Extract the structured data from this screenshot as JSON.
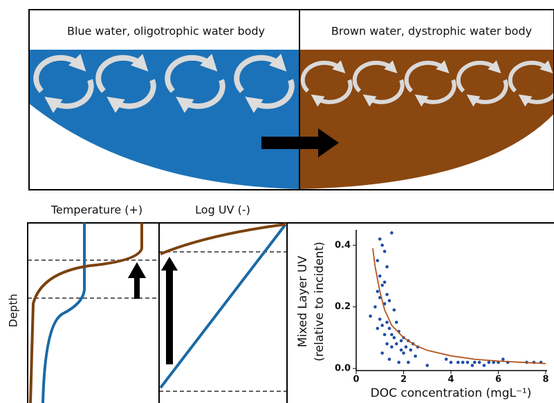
{
  "top_panel": {
    "left_label": "Blue water, oligotrophic water body",
    "right_label": "Brown water, dystrophic water body"
  },
  "profiles": {
    "temperature_label": "Temperature (+)",
    "uv_label": "Log UV (-)",
    "depth_label": "Depth"
  },
  "chart_data": {
    "type": "scatter",
    "ylabel": [
      "Mixed Layer UV",
      "(relative to incident)"
    ],
    "xlabel": "DOC concentration (mgL⁻¹)",
    "xlim": [
      0,
      8
    ],
    "ylim": [
      0,
      0.45
    ],
    "xticks": [
      0,
      2,
      4,
      6,
      8
    ],
    "yticks": [
      {
        "value": 0,
        "label": "0.0"
      },
      0.2,
      0.4
    ],
    "series": [
      {
        "type": "scatter",
        "color": "#1f4ea3",
        "x": [
          1.0,
          1.5,
          1.1,
          1.2,
          0.9,
          1.3,
          1.0,
          1.2,
          1.1,
          0.9,
          1.3,
          1.0,
          1.4,
          1.2,
          0.8,
          1.6,
          0.6,
          1.0,
          1.3,
          1.7,
          1.1,
          0.9,
          1.4,
          1.8,
          1.2,
          1.5,
          2.0,
          1.6,
          1.9,
          2.2,
          1.3,
          1.7,
          2.4,
          2.1,
          1.5,
          2.6,
          1.9,
          2.3,
          1.1,
          2.0,
          2.5,
          1.4,
          1.8,
          2.2,
          3.0,
          3.8,
          4.0,
          4.3,
          4.5,
          4.7,
          4.9,
          5.0,
          5.2,
          5.4,
          5.6,
          5.8,
          6.0,
          6.2,
          6.4,
          7.2,
          7.5,
          7.8
        ],
        "values": [
          0.42,
          0.44,
          0.4,
          0.38,
          0.35,
          0.33,
          0.3,
          0.28,
          0.27,
          0.25,
          0.24,
          0.23,
          0.22,
          0.21,
          0.2,
          0.19,
          0.17,
          0.16,
          0.15,
          0.15,
          0.14,
          0.13,
          0.13,
          0.12,
          0.11,
          0.11,
          0.1,
          0.1,
          0.09,
          0.09,
          0.08,
          0.08,
          0.08,
          0.07,
          0.07,
          0.07,
          0.06,
          0.06,
          0.05,
          0.05,
          0.04,
          0.03,
          0.02,
          0.02,
          0.01,
          0.03,
          0.02,
          0.02,
          0.02,
          0.02,
          0.01,
          0.02,
          0.02,
          0.01,
          0.02,
          0.02,
          0.02,
          0.03,
          0.02,
          0.02,
          0.02,
          0.02
        ]
      },
      {
        "type": "line",
        "color": "#b5531c",
        "x": [
          0.7,
          0.8,
          1,
          1.2,
          1.5,
          2,
          2.5,
          3,
          4,
          5,
          6,
          7,
          8
        ],
        "values": [
          0.39,
          0.33,
          0.25,
          0.19,
          0.14,
          0.1,
          0.075,
          0.059,
          0.041,
          0.03,
          0.024,
          0.02,
          0.016
        ]
      }
    ]
  }
}
